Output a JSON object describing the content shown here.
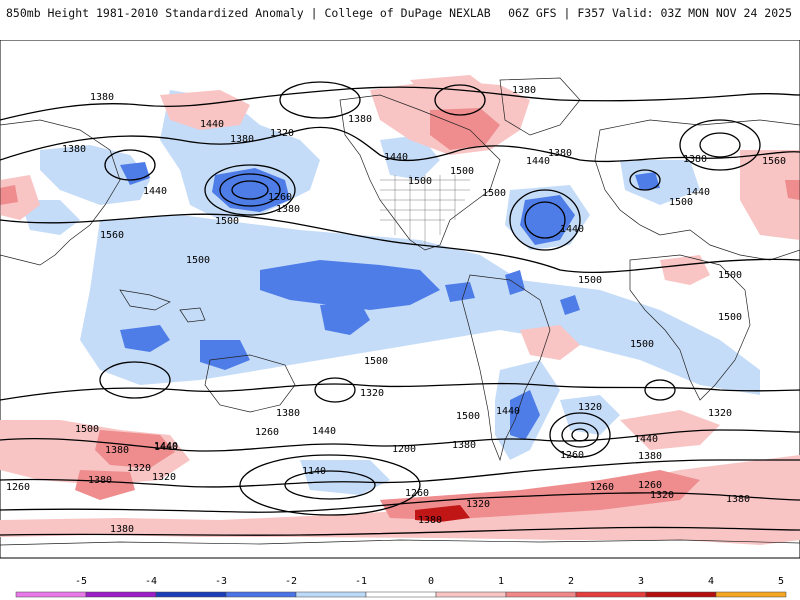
{
  "header": {
    "left_title": "850mb Height 1981-2010 Standardized Anomaly | College of DuPage NEXLAB",
    "right_title": "06Z GFS | F357 Valid: 03Z MON NOV 24 2025"
  },
  "colorbar": {
    "ticks": [
      "-5",
      "-4",
      "-3",
      "-2",
      "-1",
      "0",
      "1",
      "2",
      "3",
      "4",
      "5"
    ],
    "colors": [
      "#e879e8",
      "#9a1fc7",
      "#1c3fb8",
      "#4b73e6",
      "#bcd9f7",
      "#ffffff",
      "#f8c4c4",
      "#f0888a",
      "#e33e3e",
      "#b30f0f",
      "#f5a623"
    ]
  },
  "contour_labels": [
    {
      "text": "1380",
      "id": "npac-1380-a"
    },
    {
      "text": "1440",
      "id": "npac-1440-a"
    },
    {
      "text": "1380",
      "id": "npac-1380-b"
    },
    {
      "text": "1320",
      "id": "npac-1320"
    },
    {
      "text": "1260",
      "id": "npac-1260"
    },
    {
      "text": "1380",
      "id": "npac-1380-c"
    },
    {
      "text": "1500",
      "id": "npac-1500"
    },
    {
      "text": "1380",
      "id": "nw-1380"
    },
    {
      "text": "1440",
      "id": "nw-1440"
    },
    {
      "text": "1560",
      "id": "asia-1560"
    },
    {
      "text": "1500",
      "id": "tpac-1500"
    },
    {
      "text": "1380",
      "id": "ak-1380"
    },
    {
      "text": "1440",
      "id": "can-1440"
    },
    {
      "text": "1500",
      "id": "can-1500-a"
    },
    {
      "text": "1500",
      "id": "can-1500-b"
    },
    {
      "text": "1380",
      "id": "arctic-1380"
    },
    {
      "text": "1440",
      "id": "grn-1440"
    },
    {
      "text": "1380",
      "id": "grn-1380"
    },
    {
      "text": "1500",
      "id": "us-1500"
    },
    {
      "text": "1440",
      "id": "atl-1440"
    },
    {
      "text": "1500",
      "id": "catl-1500"
    },
    {
      "text": "1380",
      "id": "eur-1380"
    },
    {
      "text": "1440",
      "id": "eur-1440"
    },
    {
      "text": "1500",
      "id": "eur-1500"
    },
    {
      "text": "1560",
      "id": "eur-1560"
    },
    {
      "text": "1500",
      "id": "afr-1500-a"
    },
    {
      "text": "1500",
      "id": "afr-1500-b"
    },
    {
      "text": "1500",
      "id": "satl-1500"
    },
    {
      "text": "1500",
      "id": "spac-1500"
    },
    {
      "text": "1380",
      "id": "sw-1380"
    },
    {
      "text": "1440",
      "id": "sw-1440"
    },
    {
      "text": "1320",
      "id": "sw-1320"
    },
    {
      "text": "1500",
      "id": "so-1500-a"
    },
    {
      "text": "1380",
      "id": "so-1380-a"
    },
    {
      "text": "1440",
      "id": "so-1440-a"
    },
    {
      "text": "1320",
      "id": "so-1320-a"
    },
    {
      "text": "1380",
      "id": "so-1380-b"
    },
    {
      "text": "1260",
      "id": "so-1260-a"
    },
    {
      "text": "1380",
      "id": "so-1380-c"
    },
    {
      "text": "1440",
      "id": "so-1440-b"
    },
    {
      "text": "1320",
      "id": "so-1320-b"
    },
    {
      "text": "1260",
      "id": "so-1260-b"
    },
    {
      "text": "1200",
      "id": "so-1200"
    },
    {
      "text": "1140",
      "id": "so-1140"
    },
    {
      "text": "1500",
      "id": "sa-1500"
    },
    {
      "text": "1380",
      "id": "sa-1380"
    },
    {
      "text": "1440",
      "id": "sa-1440"
    },
    {
      "text": "1320",
      "id": "sa-1320"
    },
    {
      "text": "1260",
      "id": "sa-1260"
    },
    {
      "text": "1260",
      "id": "so-1260-c"
    },
    {
      "text": "1320",
      "id": "so-1320-c"
    },
    {
      "text": "1440",
      "id": "sa-1440-b"
    },
    {
      "text": "1380",
      "id": "sa-1380-b"
    },
    {
      "text": "1320",
      "id": "se-1320"
    },
    {
      "text": "1380",
      "id": "se-1380"
    },
    {
      "text": "1260",
      "id": "so-1260-d"
    },
    {
      "text": "1320",
      "id": "so-1320-d"
    },
    {
      "text": "1260",
      "id": "so-1260-e"
    },
    {
      "text": "1380",
      "id": "so-1380-d"
    }
  ]
}
